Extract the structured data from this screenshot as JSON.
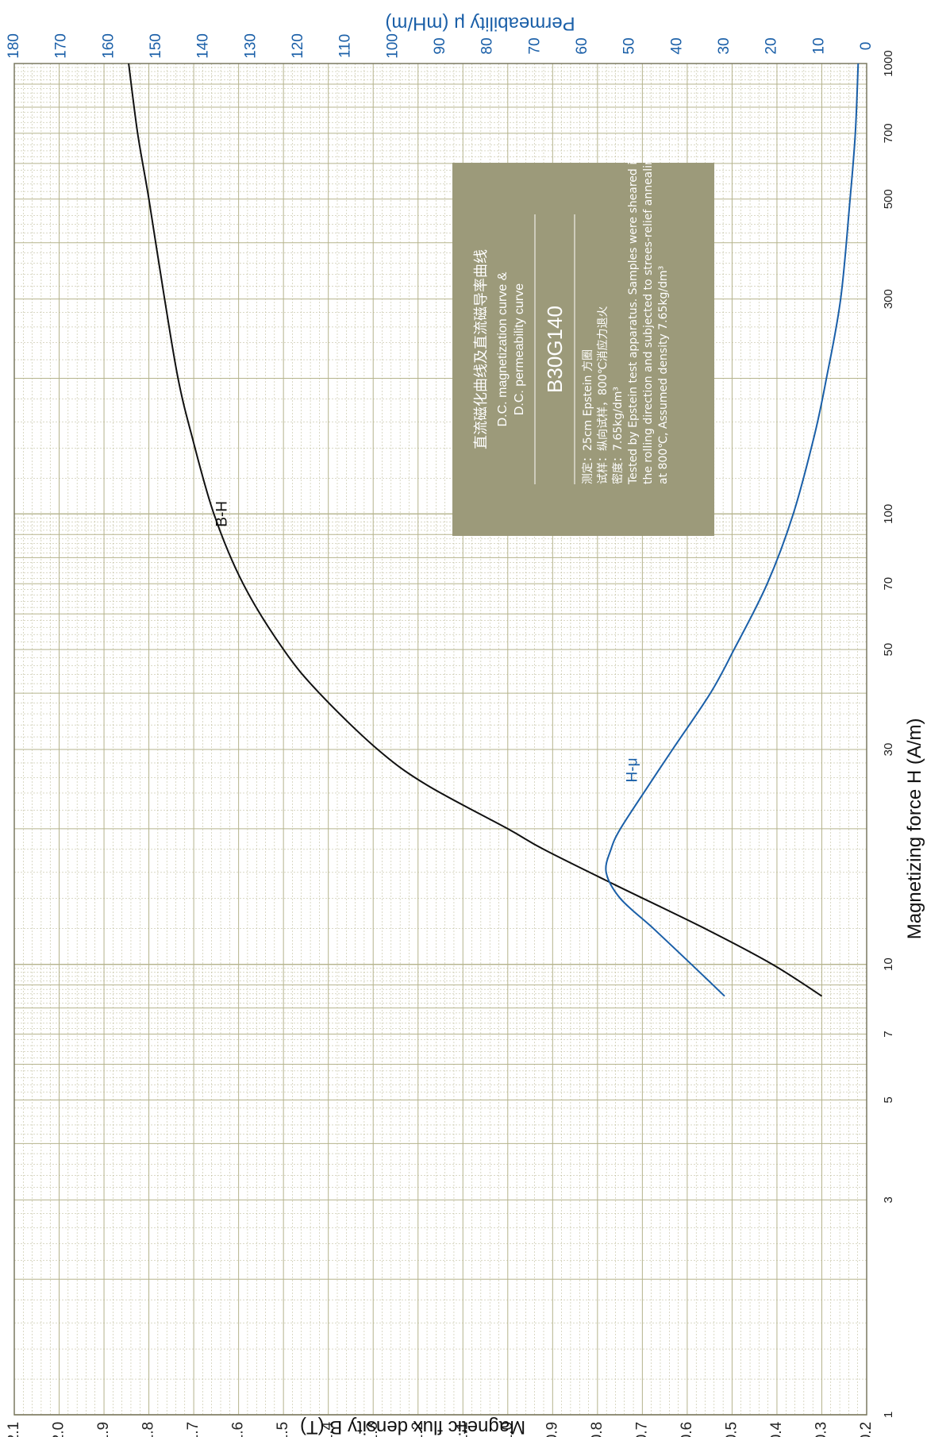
{
  "chart_data": {
    "type": "line",
    "xlabel": "Magnetizing force H (A/m)",
    "ylabel": "Magnetic flux density B (T)",
    "y2label": "Permeability μ (mH/m)",
    "x_scale": "log",
    "xlim": [
      1,
      1000
    ],
    "ylim": [
      0.2,
      2.1
    ],
    "y2lim": [
      0,
      180
    ],
    "grid": true,
    "x_major_ticks": [
      1,
      10,
      100,
      1000
    ],
    "x_minor_labeled_ticks": [
      3,
      5,
      7,
      30,
      50,
      70,
      300,
      500,
      700
    ],
    "y_ticks": [
      0.2,
      0.3,
      0.4,
      0.5,
      0.6,
      0.7,
      0.8,
      0.9,
      1.0,
      1.1,
      1.2,
      1.3,
      1.4,
      1.5,
      1.6,
      1.7,
      1.8,
      1.9,
      2.0,
      2.1
    ],
    "y_tick_labels": [
      "0.2",
      "0.3",
      "0.4",
      "0.5",
      "0.6",
      "0.7",
      "0.8",
      "0.9",
      "1.0",
      "1.1",
      "1.2",
      "1.3",
      "1.4",
      "1.5",
      "1.6",
      "1.7",
      "1.8",
      "1.9",
      "2.0",
      "2.1"
    ],
    "y2_ticks": [
      0,
      10,
      20,
      30,
      40,
      50,
      60,
      70,
      80,
      90,
      100,
      110,
      120,
      130,
      140,
      150,
      160,
      170,
      180
    ],
    "series": [
      {
        "name": "B-H",
        "color": "#111111",
        "axis": "left",
        "x": [
          8.5,
          10,
          12,
          15,
          18,
          20,
          25,
          30,
          40,
          50,
          70,
          100,
          150,
          200,
          300,
          500,
          700,
          1000
        ],
        "y": [
          0.3,
          0.41,
          0.56,
          0.76,
          0.92,
          1.0,
          1.18,
          1.29,
          1.42,
          1.5,
          1.59,
          1.655,
          1.705,
          1.735,
          1.765,
          1.8,
          1.825,
          1.845
        ]
      },
      {
        "name": "H-μ",
        "color": "#1a5fa8",
        "axis": "right",
        "x": [
          8.5,
          10,
          12,
          14,
          16,
          18,
          20,
          25,
          30,
          40,
          50,
          70,
          100,
          150,
          200,
          300,
          500,
          700,
          1000
        ],
        "y": [
          30,
          37,
          45,
          52,
          55,
          54,
          52,
          46,
          41,
          33,
          28,
          21,
          15.5,
          11,
          8.5,
          5.5,
          3.5,
          2.4,
          1.8
        ]
      }
    ]
  },
  "info_box": {
    "cn_title": "直流磁化曲线及直流磁导率曲线",
    "en_title_1": "D.C. magnetization curve &",
    "en_title_2": "D.C. permeability curve",
    "model": "B30G140",
    "cn_line_1": "测定：25cm Epstein 方圈",
    "cn_line_2": "试样：纵向试样，800℃消应力退火",
    "cn_line_3": "密度：7.65kg/dm³",
    "en_desc_1": "Tested by Epstein test apparatus. Samples were sheared in",
    "en_desc_2": "the rolling direction and subjected to strees-relief annealing",
    "en_desc_3": "at 800℃, Assumed density 7.65kg/dm³"
  },
  "colors": {
    "grid": "#b5b38c",
    "panel": "#9c9a7a",
    "bh_curve": "#111111",
    "mu_curve": "#1a5fa8"
  }
}
